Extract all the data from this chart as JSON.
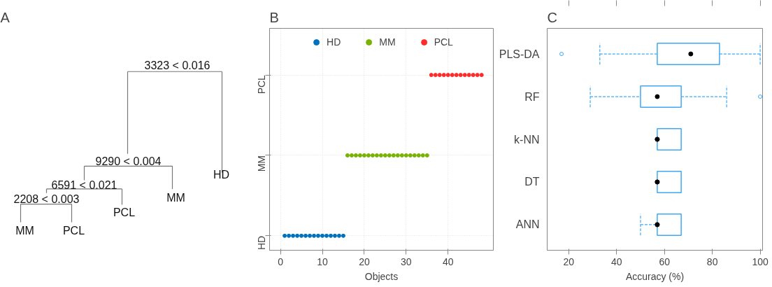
{
  "chart_data": [
    {
      "type": "other",
      "title": "A",
      "annotations": [
        "3323 < 0.016",
        "9290 < 0.004",
        "HD",
        "6591 < 0.021",
        "MM",
        "2208 < 0.003",
        "PCL",
        "MM",
        "PCL"
      ]
    },
    {
      "type": "scatter",
      "title": "B",
      "orientation": "horizontal",
      "xlabel": "Objects",
      "xlim": [
        -2.6,
        50.8
      ],
      "xticks": [
        0,
        10,
        20,
        30,
        40
      ],
      "categories": [
        "PCL",
        "MM",
        "HD"
      ],
      "grid": true,
      "legend": "top",
      "marker": "circle",
      "series": [
        {
          "name": "HD",
          "color": "#0072bd",
          "x": [
            "HD",
            "HD",
            "HD",
            "HD",
            "HD",
            "HD",
            "HD",
            "HD",
            "HD",
            "HD",
            "HD",
            "HD",
            "HD",
            "HD",
            "HD"
          ],
          "values": [
            1,
            2,
            3,
            4,
            5,
            6,
            7,
            8,
            9,
            10,
            11,
            12,
            13,
            14,
            15
          ]
        },
        {
          "name": "MM",
          "color": "#77b300",
          "x": [
            "MM",
            "MM",
            "MM",
            "MM",
            "MM",
            "MM",
            "MM",
            "MM",
            "MM",
            "MM",
            "MM",
            "MM",
            "MM",
            "MM",
            "MM",
            "MM",
            "MM",
            "MM",
            "MM",
            "MM"
          ],
          "values": [
            16,
            17,
            18,
            19,
            20,
            21,
            22,
            23,
            24,
            25,
            26,
            27,
            28,
            29,
            30,
            31,
            32,
            33,
            34,
            35
          ]
        },
        {
          "name": "PCL",
          "color": "#ff2a2a",
          "x": [
            "PCL",
            "PCL",
            "PCL",
            "PCL",
            "PCL",
            "PCL",
            "PCL",
            "PCL",
            "PCL",
            "PCL",
            "PCL",
            "PCL",
            "PCL"
          ],
          "values": [
            36,
            37,
            38,
            39,
            40,
            41,
            42,
            43,
            44,
            45,
            46,
            47,
            48
          ]
        }
      ]
    },
    {
      "type": "box",
      "title": "C",
      "orientation": "horizontal",
      "xlabel": "Accuracy (%)",
      "xlim": [
        11,
        101
      ],
      "xticks": [
        20,
        40,
        60,
        80,
        {
          "value": 100,
          "label": "100"
        }
      ],
      "categories": [
        "PLS-DA",
        "RF",
        "k-NN",
        "DT",
        "ANN"
      ],
      "line_style": "dashed",
      "grid": false,
      "series": [
        {
          "color": "#3fa9f5",
          "boxes": [
            {
              "low": 33,
              "q1": 57,
              "median": 71,
              "q3": 83,
              "high": 100,
              "outliers": [
                17
              ]
            },
            {
              "low": 29,
              "q1": 50,
              "median": 57,
              "q3": 67,
              "high": 86,
              "outliers": [
                100
              ]
            },
            {
              "low": 57,
              "q1": 57,
              "median": 57,
              "q3": 67,
              "high": 67
            },
            {
              "low": 57,
              "q1": 57,
              "median": 57,
              "q3": 67,
              "high": 67
            },
            {
              "low": 50,
              "q1": 57,
              "median": 57,
              "q3": 67,
              "high": 67
            }
          ]
        },
        {
          "type": "scatter",
          "color": "#000000",
          "x": [
            "PLS-DA",
            "RF",
            "k-NN",
            "DT",
            "ANN"
          ],
          "values": [
            null,
            null,
            57,
            57,
            57
          ]
        }
      ]
    }
  ]
}
